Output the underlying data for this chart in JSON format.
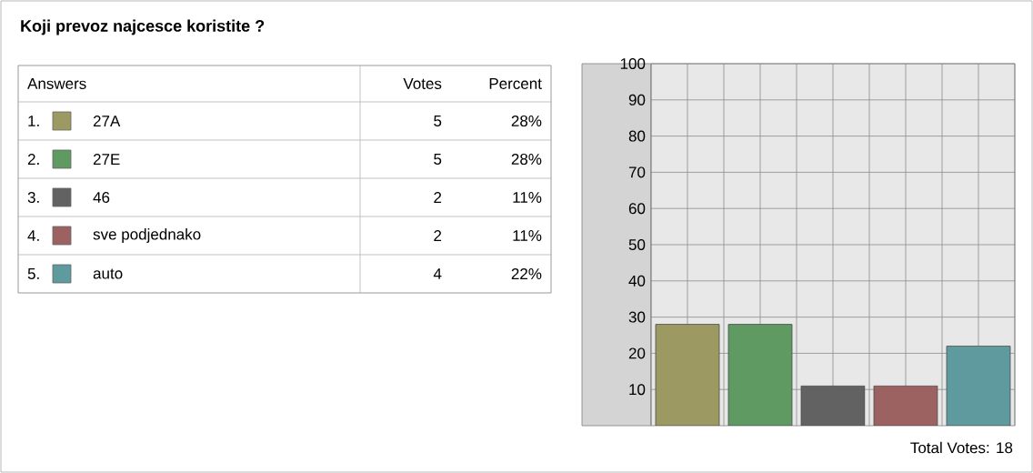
{
  "chart_data": {
    "type": "bar",
    "title": "Koji prevoz najcesce koristite ?",
    "categories": [
      null,
      null,
      null,
      null,
      null
    ],
    "series": [
      {
        "name": "27A",
        "color": "#9c9a62",
        "values": [
          28,
          null,
          null,
          null,
          null
        ]
      },
      {
        "name": "27E",
        "color": "#5e9a62",
        "values": [
          null,
          28,
          null,
          null,
          null
        ]
      },
      {
        "name": "46",
        "color": "#626262",
        "values": [
          null,
          null,
          11,
          null,
          null
        ]
      },
      {
        "name": "sve podjednako",
        "color": "#9c6262",
        "values": [
          null,
          null,
          null,
          11,
          null
        ]
      },
      {
        "name": "auto",
        "color": "#5e9a9e",
        "values": [
          null,
          null,
          null,
          null,
          22
        ]
      }
    ],
    "ylim": [
      0,
      100
    ],
    "yticks": [
      10,
      20,
      30,
      40,
      50,
      60,
      70,
      80,
      90,
      100
    ],
    "grid": true,
    "legend": "left",
    "annotations": [
      "Answers",
      "Votes",
      "Percent",
      "1.",
      "2.",
      "3.",
      "4.",
      "5.",
      "5",
      "5",
      "2",
      "2",
      "4",
      "28%",
      "28%",
      "11%",
      "11%",
      "22%",
      "Total Votes: 18"
    ]
  }
}
